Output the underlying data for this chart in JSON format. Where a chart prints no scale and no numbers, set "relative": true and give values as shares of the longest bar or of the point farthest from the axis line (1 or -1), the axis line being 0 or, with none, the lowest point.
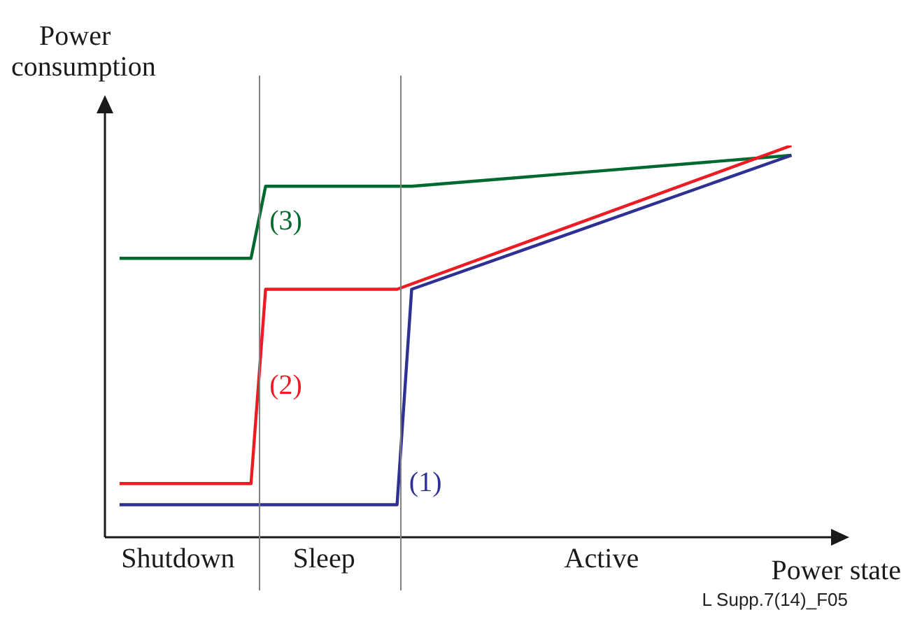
{
  "chart_data": {
    "type": "line",
    "relative": true,
    "xlabel": "Power state",
    "ylabel": "Power consumption",
    "categories": [
      null,
      null,
      null,
      null,
      null,
      "Shutdown",
      null,
      null,
      null,
      null,
      null,
      null,
      null,
      null,
      null,
      "Sleep",
      null,
      null,
      null,
      null,
      null,
      null,
      null,
      null,
      null,
      null,
      null,
      null,
      null,
      null,
      null,
      null,
      null,
      null,
      "Active",
      null,
      null,
      null,
      null,
      null,
      null,
      null,
      null,
      null,
      null,
      null,
      null,
      null,
      null,
      null,
      null
    ],
    "grid": false,
    "legend": false,
    "marker": "none",
    "line_style": "solid",
    "series": [
      {
        "name": "(1)",
        "color": "#2e3192",
        "values": [
          null,
          0.083,
          null,
          null,
          null,
          null,
          null,
          null,
          null,
          null,
          null,
          null,
          null,
          null,
          null,
          null,
          null,
          null,
          null,
          null,
          0.083,
          0.633,
          null,
          null,
          null,
          null,
          null,
          null,
          null,
          null,
          null,
          null,
          null,
          null,
          null,
          null,
          null,
          null,
          null,
          null,
          null,
          null,
          null,
          null,
          null,
          null,
          null,
          0.975,
          null,
          null,
          null
        ]
      },
      {
        "name": "(2)",
        "color": "#ed1c24",
        "values": [
          null,
          0.137,
          null,
          null,
          null,
          null,
          null,
          null,
          null,
          null,
          0.137,
          0.633,
          null,
          null,
          null,
          null,
          null,
          null,
          null,
          null,
          0.633,
          null,
          null,
          null,
          null,
          null,
          null,
          null,
          null,
          null,
          null,
          null,
          null,
          null,
          null,
          null,
          null,
          null,
          null,
          null,
          null,
          null,
          null,
          null,
          null,
          null,
          null,
          1,
          null,
          null,
          null
        ]
      },
      {
        "name": "(3)",
        "color": "#006a2e",
        "values": [
          null,
          0.712,
          null,
          null,
          null,
          null,
          null,
          null,
          null,
          null,
          0.712,
          0.896,
          null,
          null,
          null,
          null,
          null,
          null,
          null,
          null,
          null,
          0.896,
          null,
          null,
          null,
          null,
          null,
          null,
          null,
          null,
          null,
          null,
          null,
          null,
          null,
          null,
          null,
          null,
          null,
          null,
          null,
          null,
          null,
          null,
          null,
          null,
          null,
          0.975,
          null,
          null,
          null
        ]
      }
    ],
    "annotations": [
      "L Supp.7(14)_F05"
    ]
  }
}
